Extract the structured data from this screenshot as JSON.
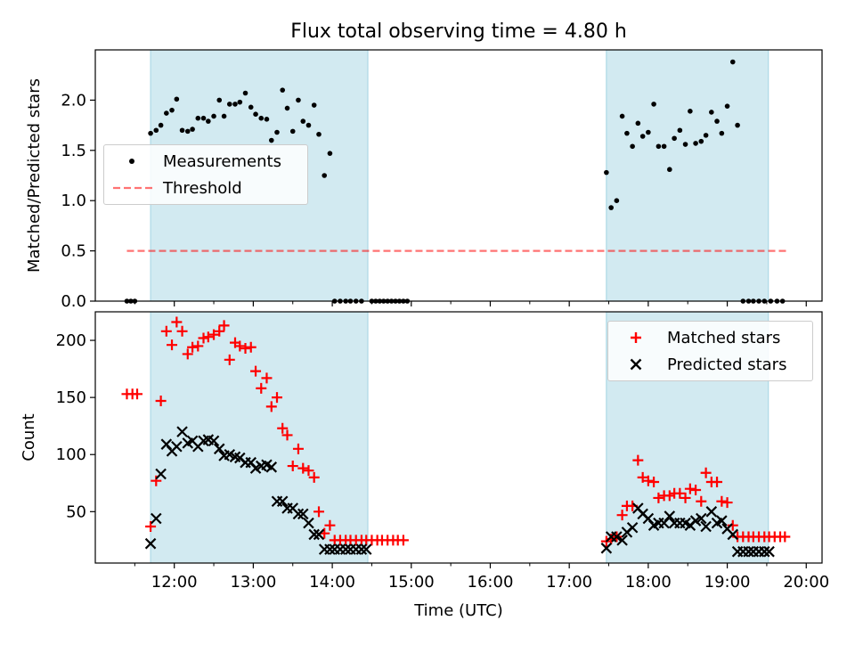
{
  "chart_data": {
    "title": "Flux total observing time = 4.80 h",
    "xlabel": "Time (UTC)",
    "x_tick_labels": [
      "12:00",
      "13:00",
      "14:00",
      "15:00",
      "16:00",
      "17:00",
      "18:00",
      "19:00",
      "20:00"
    ],
    "x_ticks_hours": [
      12,
      13,
      14,
      15,
      16,
      17,
      18,
      19,
      20
    ],
    "x_minor_ticks_hours": [
      11.5,
      12.5,
      13.5,
      14.5,
      15.5,
      16.5,
      17.5,
      18.5,
      19.5
    ],
    "xlim": [
      11.0,
      20.2
    ],
    "observing_windows": [
      [
        11.7,
        14.45
      ],
      [
        17.47,
        19.52
      ]
    ],
    "colors": {
      "window": "#add8e6",
      "measurements": "#000000",
      "threshold": "#ff0000",
      "matched": "#ff0000",
      "predicted": "#000000"
    },
    "panels": [
      {
        "type": "scatter",
        "ylabel": "Matched/Predicted stars",
        "ylim": [
          0,
          2.5
        ],
        "y_ticks": [
          0.0,
          0.5,
          1.0,
          1.5,
          2.0
        ],
        "y_tick_labels": [
          "0.0",
          "0.5",
          "1.0",
          "1.5",
          "2.0"
        ],
        "legend_position": "center-left",
        "series": [
          {
            "name": "Measurements",
            "marker": "dot",
            "x": [
              11.4,
              11.45,
              11.5,
              11.7,
              11.77,
              11.83,
              11.9,
              11.97,
              12.03,
              12.1,
              12.17,
              12.23,
              12.3,
              12.37,
              12.43,
              12.5,
              12.57,
              12.63,
              12.7,
              12.77,
              12.83,
              12.9,
              12.97,
              13.03,
              13.1,
              13.17,
              13.23,
              13.3,
              13.37,
              13.43,
              13.5,
              13.57,
              13.63,
              13.7,
              13.77,
              13.83,
              13.9,
              13.97,
              14.03,
              14.1,
              14.17,
              14.23,
              14.3,
              14.37,
              14.5,
              14.55,
              14.6,
              14.65,
              14.7,
              14.75,
              14.8,
              14.85,
              14.9,
              14.95,
              17.47,
              17.53,
              17.6,
              17.67,
              17.73,
              17.8,
              17.87,
              17.93,
              18.0,
              18.07,
              18.13,
              18.2,
              18.27,
              18.33,
              18.4,
              18.47,
              18.53,
              18.6,
              18.67,
              18.73,
              18.8,
              18.87,
              18.93,
              19.0,
              19.07,
              19.13,
              19.2,
              19.27,
              19.33,
              19.4,
              19.47,
              19.55,
              19.63,
              19.7
            ],
            "y": [
              0.0,
              0.0,
              0.0,
              1.67,
              1.7,
              1.75,
              1.87,
              1.9,
              2.01,
              1.7,
              1.69,
              1.71,
              1.82,
              1.82,
              1.79,
              1.84,
              2.0,
              1.84,
              1.96,
              1.96,
              1.98,
              2.07,
              1.93,
              1.86,
              1.82,
              1.81,
              1.6,
              1.68,
              2.1,
              1.92,
              1.69,
              2.0,
              1.79,
              1.75,
              1.95,
              1.66,
              1.25,
              1.47,
              0.0,
              0.0,
              0.0,
              0.0,
              0.0,
              0.0,
              0.0,
              0.0,
              0.0,
              0.0,
              0.0,
              0.0,
              0.0,
              0.0,
              0.0,
              0.0,
              1.28,
              0.93,
              1.0,
              1.84,
              1.67,
              1.54,
              1.77,
              1.64,
              1.68,
              1.96,
              1.54,
              1.54,
              1.31,
              1.62,
              1.7,
              1.56,
              1.89,
              1.57,
              1.59,
              1.65,
              1.88,
              1.79,
              1.67,
              1.94,
              2.38,
              1.75,
              0.0,
              0.0,
              0.0,
              0.0,
              0.0,
              0.0,
              0.0,
              0.0
            ]
          },
          {
            "name": "Threshold",
            "marker": "dashed-line",
            "x": [
              11.4,
              19.75
            ],
            "y": [
              0.5,
              0.5
            ]
          }
        ]
      },
      {
        "type": "scatter",
        "ylabel": "Count",
        "ylim": [
          5,
          225
        ],
        "y_ticks": [
          50,
          100,
          150,
          200
        ],
        "y_tick_labels": [
          "50",
          "100",
          "150",
          "200"
        ],
        "legend_position": "top-right",
        "series": [
          {
            "name": "Matched stars",
            "marker": "plus",
            "x": [
              11.4,
              11.47,
              11.53,
              11.7,
              11.77,
              11.83,
              11.9,
              11.97,
              12.03,
              12.1,
              12.17,
              12.23,
              12.3,
              12.37,
              12.43,
              12.5,
              12.57,
              12.63,
              12.7,
              12.77,
              12.83,
              12.9,
              12.97,
              13.03,
              13.1,
              13.17,
              13.23,
              13.3,
              13.37,
              13.43,
              13.5,
              13.57,
              13.63,
              13.7,
              13.77,
              13.83,
              13.9,
              13.97,
              14.03,
              14.1,
              14.17,
              14.23,
              14.3,
              14.37,
              14.43,
              14.5,
              14.57,
              14.63,
              14.7,
              14.77,
              14.83,
              14.9,
              17.47,
              17.53,
              17.6,
              17.67,
              17.73,
              17.8,
              17.87,
              17.93,
              18.0,
              18.07,
              18.13,
              18.2,
              18.27,
              18.33,
              18.4,
              18.47,
              18.53,
              18.6,
              18.67,
              18.73,
              18.8,
              18.87,
              18.93,
              19.0,
              19.07,
              19.13,
              19.2,
              19.27,
              19.33,
              19.4,
              19.47,
              19.53,
              19.6,
              19.67,
              19.73
            ],
            "y": [
              153,
              153,
              153,
              37,
              77,
              147,
              208,
              196,
              216,
              208,
              188,
              194,
              195,
              202,
              203,
              205,
              208,
              213,
              183,
              198,
              195,
              193,
              194,
              173,
              158,
              167,
              142,
              150,
              123,
              117,
              90,
              105,
              88,
              86,
              80,
              50,
              31,
              38,
              25,
              25,
              25,
              25,
              25,
              25,
              25,
              25,
              25,
              25,
              25,
              25,
              25,
              25,
              24,
              26,
              28,
              47,
              55,
              55,
              95,
              80,
              77,
              76,
              62,
              64,
              64,
              66,
              66,
              62,
              70,
              69,
              59,
              84,
              76,
              76,
              59,
              58,
              38,
              28,
              28,
              28,
              28,
              28,
              28,
              28,
              28,
              28,
              28
            ],
            "note_count": ""
          },
          {
            "name": "Predicted stars",
            "marker": "x",
            "x": [
              11.7,
              11.77,
              11.83,
              11.9,
              11.97,
              12.03,
              12.1,
              12.17,
              12.23,
              12.3,
              12.37,
              12.43,
              12.5,
              12.57,
              12.63,
              12.7,
              12.77,
              12.83,
              12.9,
              12.97,
              13.03,
              13.1,
              13.17,
              13.23,
              13.3,
              13.37,
              13.43,
              13.5,
              13.57,
              13.63,
              13.7,
              13.77,
              13.83,
              13.9,
              13.97,
              14.03,
              14.1,
              14.17,
              14.23,
              14.3,
              14.37,
              14.43,
              17.47,
              17.53,
              17.6,
              17.67,
              17.73,
              17.8,
              17.87,
              17.93,
              18.0,
              18.07,
              18.13,
              18.2,
              18.27,
              18.33,
              18.4,
              18.47,
              18.53,
              18.6,
              18.67,
              18.73,
              18.8,
              18.87,
              18.93,
              19.0,
              19.07,
              19.13,
              19.2,
              19.27,
              19.33,
              19.4,
              19.47,
              19.53
            ],
            "y": [
              22,
              44,
              83,
              109,
              103,
              107,
              120,
              110,
              112,
              107,
              112,
              113,
              112,
              105,
              99,
              100,
              98,
              97,
              93,
              93,
              88,
              90,
              91,
              89,
              59,
              59,
              53,
              53,
              48,
              48,
              40,
              30,
              30,
              17,
              17,
              17,
              17,
              17,
              17,
              17,
              17,
              17,
              18,
              28,
              28,
              25,
              32,
              36,
              53,
              48,
              44,
              38,
              40,
              40,
              46,
              40,
              40,
              40,
              38,
              42,
              44,
              37,
              50,
              40,
              42,
              35,
              30,
              15,
              15,
              15,
              15,
              15,
              15,
              15
            ]
          }
        ]
      }
    ]
  }
}
